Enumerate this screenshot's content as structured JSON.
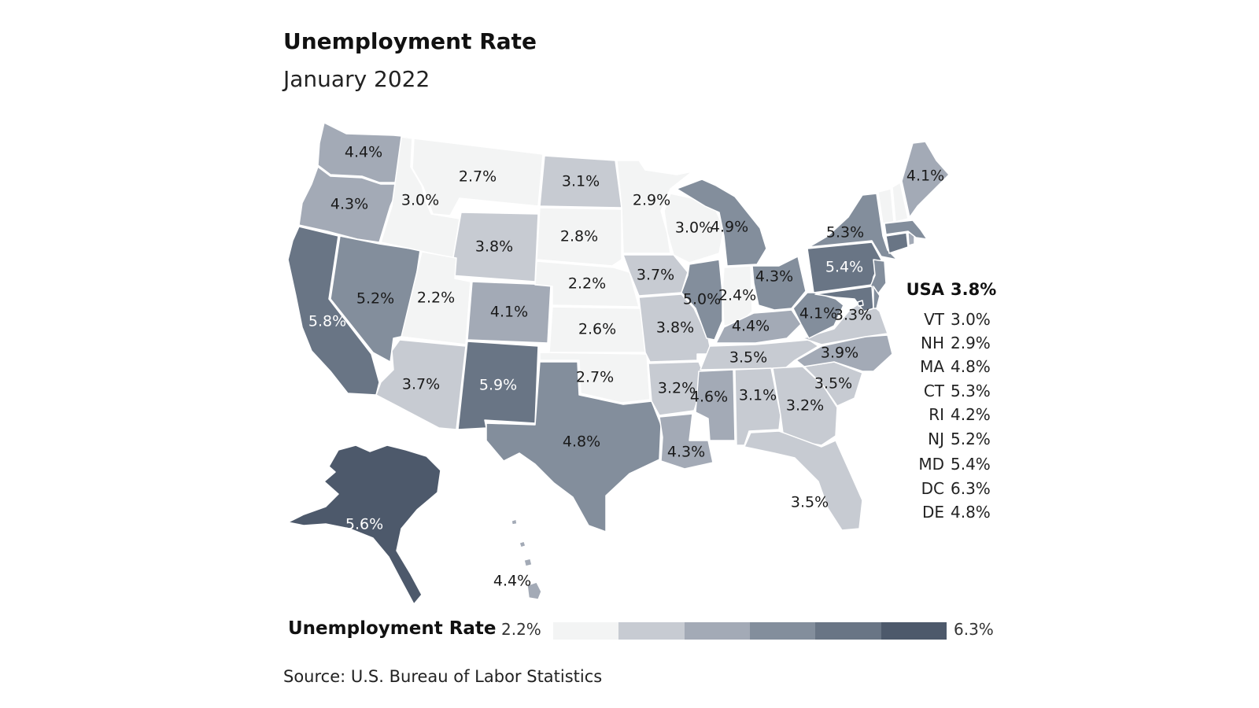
{
  "header": {
    "title": "Unemployment Rate",
    "subtitle": "January 2022"
  },
  "colors": {
    "c1": "#f3f4f4",
    "c2": "#c7cbd2",
    "c3": "#a3aab6",
    "c4": "#838e9c",
    "c5": "#697585",
    "c6": "#4d596b",
    "background": "#ffffff",
    "border": "#ffffff"
  },
  "map": {
    "labels": {
      "WA": "4.4%",
      "OR": "4.3%",
      "CA": "5.8%",
      "NV": "5.2%",
      "ID": "3.0%",
      "MT": "2.7%",
      "WY": "3.8%",
      "UT": "2.2%",
      "AZ": "3.7%",
      "CO": "4.1%",
      "NM": "5.9%",
      "ND": "3.1%",
      "SD": "2.8%",
      "NE": "2.2%",
      "KS": "2.6%",
      "OK": "2.7%",
      "TX": "4.8%",
      "MN": "2.9%",
      "IA": "3.7%",
      "MO": "3.8%",
      "AR": "3.2%",
      "LA": "4.3%",
      "WI": "3.0%",
      "IL": "5.0%",
      "MI": "4.9%",
      "IN": "2.4%",
      "OH": "4.3%",
      "KY": "4.4%",
      "TN": "3.5%",
      "MS": "4.6%",
      "AL": "3.1%",
      "GA": "3.2%",
      "FL": "3.5%",
      "SC": "3.5%",
      "NC": "3.9%",
      "VA": "3.3%",
      "WV": "4.1%",
      "PA": "5.4%",
      "NY": "5.3%",
      "ME": "4.1%",
      "AK": "5.6%",
      "HI": "4.4%"
    }
  },
  "sidebar": {
    "usa_code": "USA",
    "usa_value": "3.8%",
    "rows": [
      {
        "code": "VT",
        "value": "3.0%"
      },
      {
        "code": "NH",
        "value": "2.9%"
      },
      {
        "code": "MA",
        "value": "4.8%"
      },
      {
        "code": "CT",
        "value": "5.3%"
      },
      {
        "code": "RI",
        "value": "4.2%"
      },
      {
        "code": "NJ",
        "value": "5.2%"
      },
      {
        "code": "MD",
        "value": "5.4%"
      },
      {
        "code": "DC",
        "value": "6.3%"
      },
      {
        "code": "DE",
        "value": "4.8%"
      }
    ]
  },
  "legend": {
    "title": "Unemployment Rate",
    "min": "2.2%",
    "max": "6.3%"
  },
  "source": "Source: U.S. Bureau of Labor Statistics"
}
